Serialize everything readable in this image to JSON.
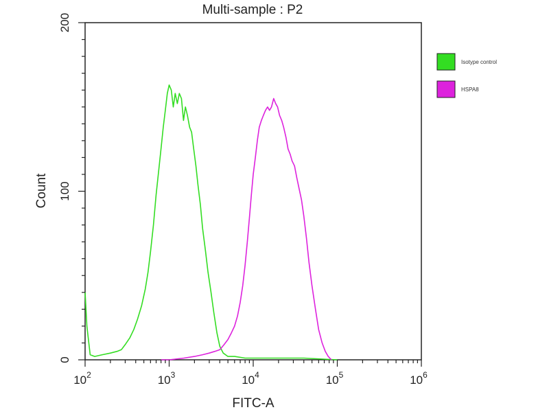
{
  "chart_data": {
    "type": "line",
    "title": "Multi-sample : P2",
    "xlabel": "FITC-A",
    "ylabel": "Count",
    "x_scale": "log",
    "xlim": [
      100,
      1000000
    ],
    "ylim": [
      0,
      200
    ],
    "x_ticks": [
      {
        "base": "10",
        "exp": "2",
        "value": 100
      },
      {
        "base": "10",
        "exp": "3",
        "value": 1000
      },
      {
        "base": "10",
        "exp": "4",
        "value": 10000
      },
      {
        "base": "10",
        "exp": "5",
        "value": 100000
      },
      {
        "base": "10",
        "exp": "6",
        "value": 1000000
      }
    ],
    "y_ticks": [
      {
        "label": "0",
        "value": 0
      },
      {
        "label": "100",
        "value": 100
      },
      {
        "label": "200",
        "value": 200
      }
    ],
    "grid": false,
    "legend_position": "right",
    "series": [
      {
        "name": "Isotype control",
        "color": "#33dd22",
        "x": [
          100,
          105,
          115,
          130,
          160,
          200,
          240,
          270,
          300,
          340,
          380,
          420,
          470,
          520,
          560,
          600,
          650,
          700,
          750,
          800,
          850,
          900,
          950,
          1000,
          1060,
          1120,
          1180,
          1250,
          1320,
          1400,
          1480,
          1560,
          1650,
          1750,
          1850,
          1960,
          2080,
          2200,
          2350,
          2500,
          2700,
          2900,
          3150,
          3400,
          3700,
          4000,
          4400,
          5000,
          6000,
          8000,
          12000,
          20000,
          40000,
          100000
        ],
        "y": [
          40,
          20,
          3,
          2,
          3,
          4,
          5,
          6,
          9,
          13,
          18,
          24,
          32,
          42,
          52,
          64,
          80,
          98,
          112,
          125,
          138,
          148,
          158,
          163,
          160,
          150,
          158,
          152,
          158,
          155,
          142,
          150,
          145,
          138,
          135,
          125,
          115,
          104,
          92,
          78,
          65,
          52,
          40,
          28,
          16,
          8,
          4,
          2,
          2,
          1,
          1,
          1,
          1,
          0
        ]
      },
      {
        "name": "HSPA8",
        "color": "#dd22dd",
        "x": [
          800,
          1000,
          1500,
          2000,
          2500,
          3000,
          3500,
          4000,
          4500,
          5000,
          5500,
          6000,
          6500,
          7000,
          7500,
          8000,
          8500,
          9000,
          9500,
          10000,
          10600,
          11200,
          11800,
          12500,
          13200,
          14000,
          14800,
          15600,
          16500,
          17500,
          18500,
          19500,
          20600,
          21800,
          23000,
          24500,
          26000,
          27500,
          29000,
          31000,
          33000,
          35000,
          37500,
          40000,
          43000,
          46000,
          50000,
          55000,
          60000,
          66000,
          72000,
          78000,
          85000
        ],
        "y": [
          0,
          0,
          1,
          2,
          3,
          4,
          5,
          6,
          9,
          12,
          16,
          20,
          26,
          34,
          44,
          56,
          70,
          84,
          98,
          110,
          120,
          130,
          138,
          142,
          145,
          148,
          150,
          148,
          150,
          155,
          152,
          150,
          145,
          142,
          138,
          132,
          125,
          122,
          118,
          115,
          108,
          102,
          95,
          85,
          72,
          58,
          44,
          30,
          18,
          10,
          5,
          2,
          0
        ]
      }
    ]
  }
}
